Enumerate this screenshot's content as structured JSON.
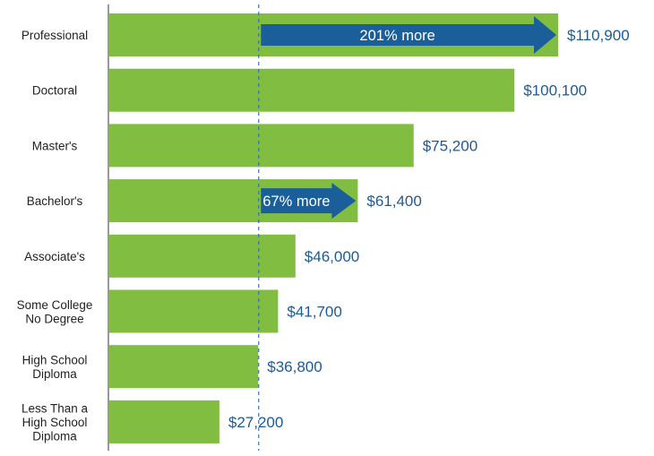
{
  "chart_data": {
    "type": "bar",
    "orientation": "horizontal",
    "categories": [
      [
        "Professional"
      ],
      [
        "Doctoral"
      ],
      [
        "Master's"
      ],
      [
        "Bachelor's"
      ],
      [
        "Associate's"
      ],
      [
        "Some College",
        "No Degree"
      ],
      [
        "High School",
        "Diploma"
      ],
      [
        "Less Than a",
        "High School",
        "Diploma"
      ]
    ],
    "values": [
      110900,
      100100,
      75200,
      61400,
      46000,
      41700,
      36800,
      27200
    ],
    "data_labels": [
      "$110,900",
      "$100,100",
      "$75,200",
      "$61,400",
      "$46,000",
      "$41,700",
      "$36,800",
      "$27,200"
    ],
    "reference_line": {
      "value": 36800,
      "style": "dashed"
    },
    "annotations": [
      {
        "category_index": 0,
        "from": 36800,
        "to": 110900,
        "text": "201% more"
      },
      {
        "category_index": 3,
        "from": 36800,
        "to": 61400,
        "text": "67% more"
      }
    ],
    "xlim": [
      0,
      110900
    ],
    "grid": false,
    "colors": {
      "bar": "#80bd41",
      "arrow": "#1a5f99",
      "label": "#1d5a96",
      "reference_line": "#3a6fb0"
    }
  }
}
